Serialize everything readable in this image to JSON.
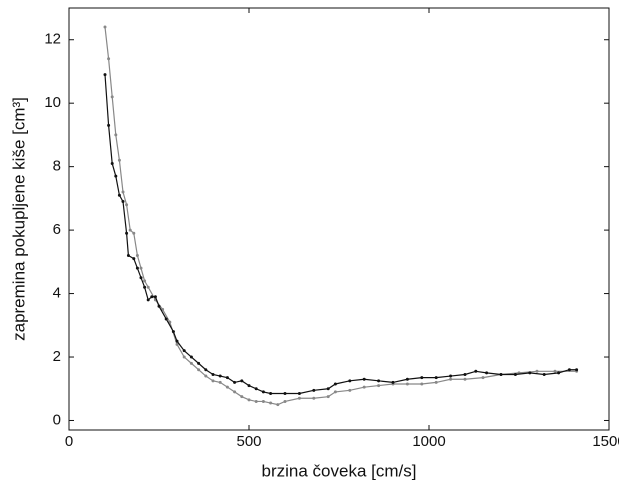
{
  "chart_data": {
    "type": "line",
    "xlabel": "brzina čoveka [cm/s]",
    "ylabel": "zapremina pokupljene kiše [cm³]",
    "xlim": [
      0,
      1500
    ],
    "xticks": [
      0,
      500,
      1000,
      1500
    ],
    "ylim": [
      -0.3,
      13
    ],
    "yticks": [
      0,
      2,
      4,
      6,
      8,
      10,
      12
    ],
    "series": [
      {
        "color": "#888888",
        "x": [
          100,
          110,
          120,
          130,
          140,
          150,
          160,
          170,
          180,
          190,
          200,
          210,
          220,
          240,
          260,
          280,
          300,
          320,
          340,
          360,
          380,
          400,
          420,
          440,
          460,
          480,
          500,
          520,
          540,
          560,
          580,
          600,
          640,
          680,
          720,
          740,
          780,
          820,
          860,
          900,
          940,
          980,
          1020,
          1060,
          1100,
          1150,
          1200,
          1250,
          1300,
          1350,
          1410
        ],
        "values": [
          12.4,
          11.4,
          10.2,
          9.0,
          8.2,
          7.2,
          6.8,
          6.0,
          5.9,
          5.2,
          4.8,
          4.4,
          4.2,
          3.8,
          3.5,
          3.1,
          2.4,
          2.0,
          1.8,
          1.6,
          1.4,
          1.25,
          1.2,
          1.05,
          0.9,
          0.75,
          0.65,
          0.6,
          0.6,
          0.55,
          0.5,
          0.6,
          0.7,
          0.7,
          0.75,
          0.9,
          0.95,
          1.05,
          1.1,
          1.15,
          1.15,
          1.15,
          1.2,
          1.3,
          1.3,
          1.35,
          1.45,
          1.5,
          1.55,
          1.55,
          1.55
        ]
      },
      {
        "color": "#111111",
        "x": [
          100,
          110,
          120,
          130,
          140,
          150,
          160,
          165,
          180,
          190,
          200,
          210,
          220,
          230,
          240,
          250,
          270,
          290,
          300,
          320,
          340,
          360,
          380,
          400,
          420,
          440,
          460,
          480,
          500,
          520,
          540,
          560,
          600,
          640,
          680,
          720,
          740,
          780,
          820,
          860,
          900,
          940,
          980,
          1020,
          1060,
          1100,
          1130,
          1160,
          1200,
          1240,
          1280,
          1320,
          1360,
          1390,
          1410
        ],
        "values": [
          10.9,
          9.3,
          8.1,
          7.7,
          7.1,
          6.9,
          5.9,
          5.2,
          5.1,
          4.8,
          4.5,
          4.2,
          3.8,
          3.9,
          3.9,
          3.6,
          3.2,
          2.8,
          2.5,
          2.2,
          2.0,
          1.8,
          1.6,
          1.45,
          1.4,
          1.35,
          1.2,
          1.25,
          1.1,
          1.0,
          0.9,
          0.85,
          0.85,
          0.85,
          0.95,
          1.0,
          1.15,
          1.25,
          1.3,
          1.25,
          1.2,
          1.3,
          1.35,
          1.35,
          1.4,
          1.45,
          1.55,
          1.5,
          1.45,
          1.45,
          1.5,
          1.45,
          1.5,
          1.6,
          1.6
        ]
      }
    ]
  }
}
